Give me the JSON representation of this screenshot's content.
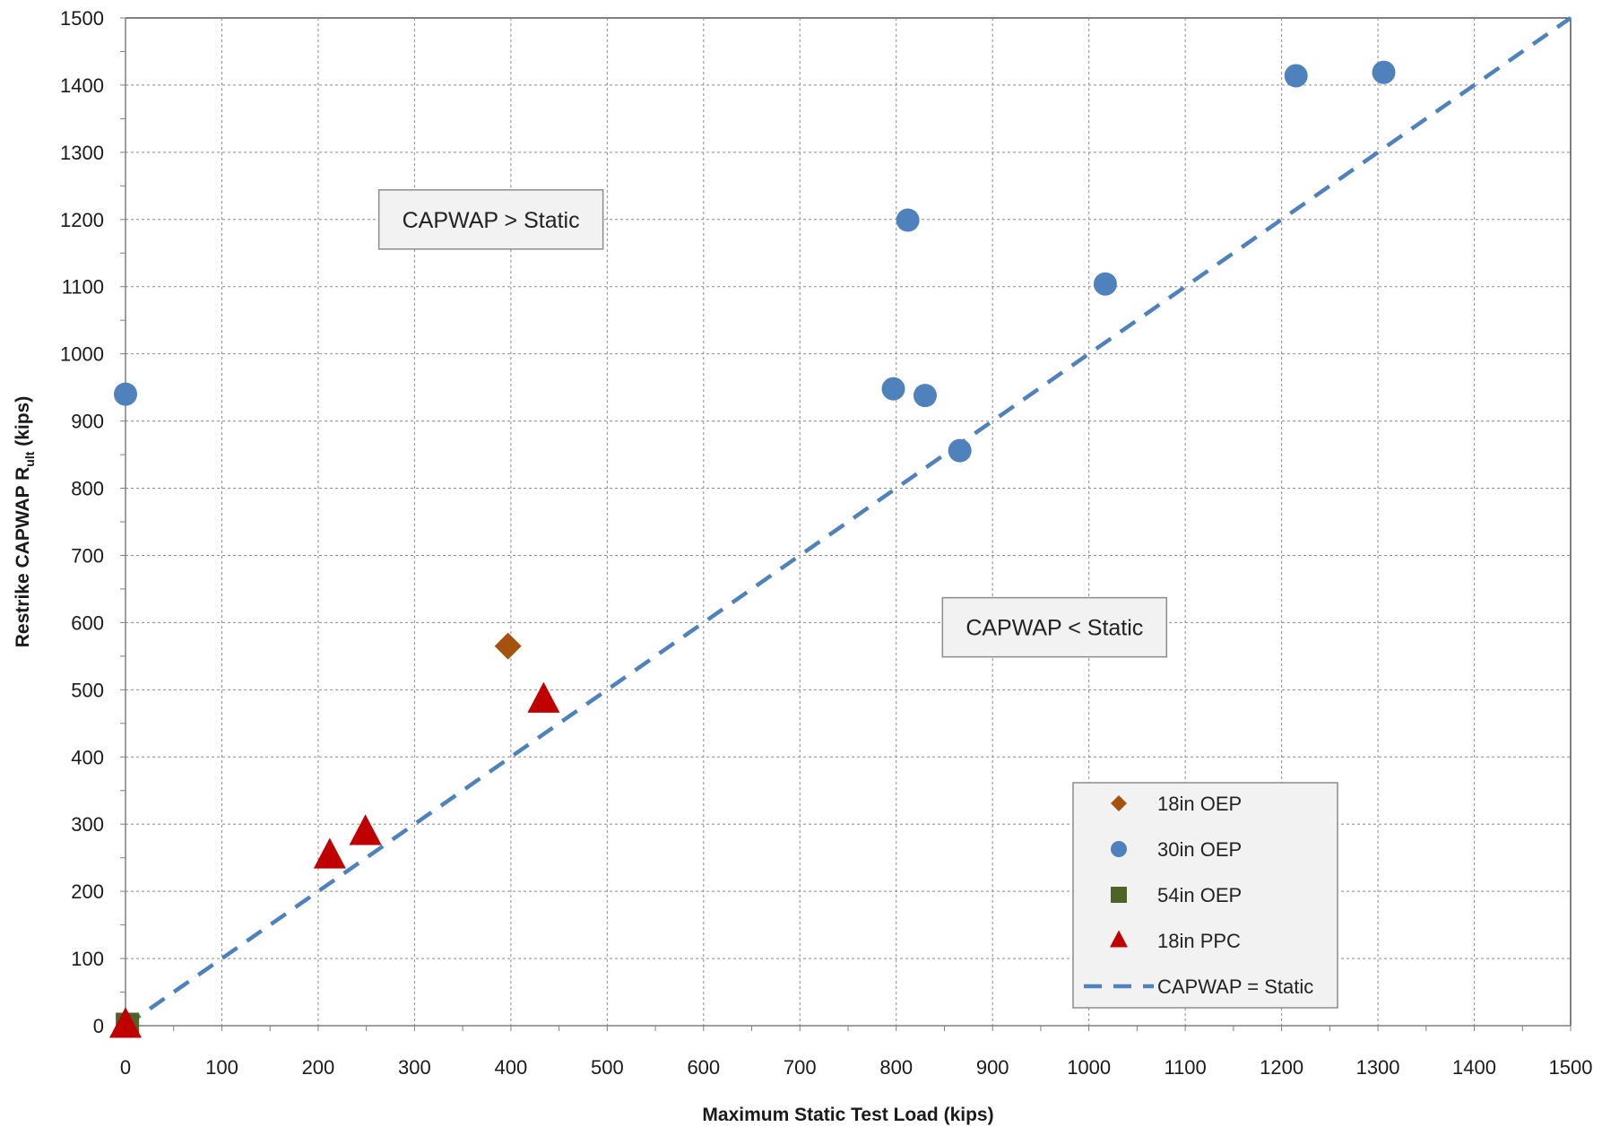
{
  "chart_data": {
    "type": "scatter",
    "title": "",
    "xlabel": "Maximum Static Test Load (kips)",
    "ylabel_main": "Restrike CAPWAP R",
    "ylabel_sub": "ult",
    "ylabel_unit": " (kips)",
    "xlim": [
      0,
      1500
    ],
    "ylim": [
      0,
      1500
    ],
    "xticks": [
      0,
      100,
      200,
      300,
      400,
      500,
      600,
      700,
      800,
      900,
      1000,
      1100,
      1200,
      1300,
      1400,
      1500
    ],
    "yticks": [
      0,
      100,
      200,
      300,
      400,
      500,
      600,
      700,
      800,
      900,
      1000,
      1100,
      1200,
      1300,
      1400,
      1500
    ],
    "grid": true,
    "legend_position": "bottom-right",
    "series": [
      {
        "name": "18in OEP",
        "marker": "diamond",
        "color": "#a5520f",
        "points": [
          [
            397,
            565
          ]
        ]
      },
      {
        "name": "30in OEP",
        "marker": "circle",
        "color": "#4f81bd",
        "points": [
          [
            0,
            940
          ],
          [
            797,
            948
          ],
          [
            812,
            1199
          ],
          [
            830,
            938
          ],
          [
            866,
            856
          ],
          [
            1017,
            1104
          ],
          [
            1215,
            1414
          ],
          [
            1306,
            1419
          ]
        ]
      },
      {
        "name": "54in OEP",
        "marker": "square",
        "color": "#4f6228",
        "points": [
          [
            2,
            2
          ]
        ]
      },
      {
        "name": "18in PPC",
        "marker": "triangle",
        "color": "#c00000",
        "points": [
          [
            0,
            0
          ],
          [
            212,
            252
          ],
          [
            249,
            287
          ],
          [
            434,
            484
          ]
        ]
      },
      {
        "name": "CAPWAP = Static",
        "marker": "dashed-line",
        "color": "#4f81bd",
        "points": [
          [
            0,
            0
          ],
          [
            1500,
            1500
          ]
        ]
      }
    ],
    "annotations": [
      {
        "text": "CAPWAP > Static",
        "x": 263,
        "y": 1200
      },
      {
        "text": "CAPWAP < Static",
        "x": 848,
        "y": 593
      }
    ]
  }
}
